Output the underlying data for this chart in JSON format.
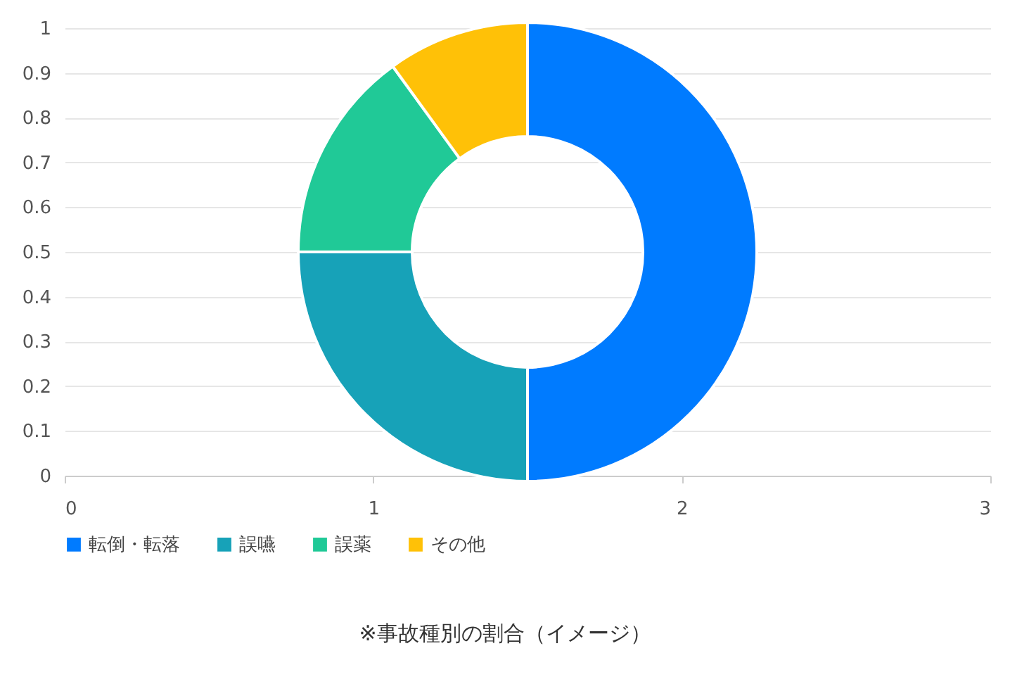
{
  "chart_data": [
    {
      "type": "line",
      "xlim": [
        0,
        3
      ],
      "xticks": [
        0,
        1,
        2,
        3
      ],
      "ylim": [
        0,
        1
      ],
      "yticks": [
        0,
        0.1,
        0.2,
        0.3,
        0.4,
        0.5,
        0.6,
        0.7,
        0.8,
        0.9,
        1
      ],
      "grid": "y"
    },
    {
      "type": "donut",
      "categories": [
        "転倒・転落",
        "誤嚥",
        "誤薬",
        "その他"
      ],
      "values": [
        50,
        25,
        15,
        10
      ],
      "colors": [
        "#007bff",
        "#17a2b8",
        "#20c997",
        "#ffc107"
      ],
      "legend": "bottom",
      "annotations": [
        "※事故種別の割合（イメージ）"
      ]
    }
  ]
}
